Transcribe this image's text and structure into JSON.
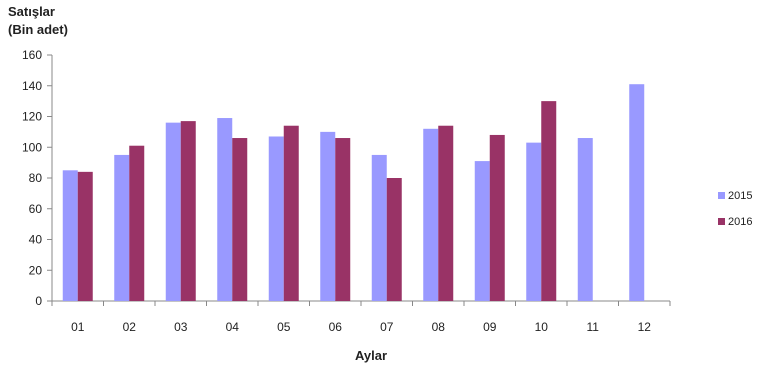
{
  "chart_data": {
    "type": "bar",
    "ylabel": [
      "Satışlar",
      "(Bin adet)"
    ],
    "xlabel": "Aylar",
    "categories": [
      "01",
      "02",
      "03",
      "04",
      "05",
      "06",
      "07",
      "08",
      "09",
      "10",
      "11",
      "12"
    ],
    "ylim": [
      0,
      160
    ],
    "yticks": [
      0,
      20,
      40,
      60,
      80,
      100,
      120,
      140,
      160
    ],
    "grid": false,
    "legend_position": "right",
    "series": [
      {
        "name": "2015",
        "color": "#9999ff",
        "values": [
          85,
          95,
          116,
          119,
          107,
          110,
          95,
          112,
          91,
          103,
          106,
          141
        ]
      },
      {
        "name": "2016",
        "color": "#993366",
        "values": [
          84,
          101,
          117,
          106,
          114,
          106,
          80,
          114,
          108,
          130,
          null,
          null
        ]
      }
    ]
  }
}
